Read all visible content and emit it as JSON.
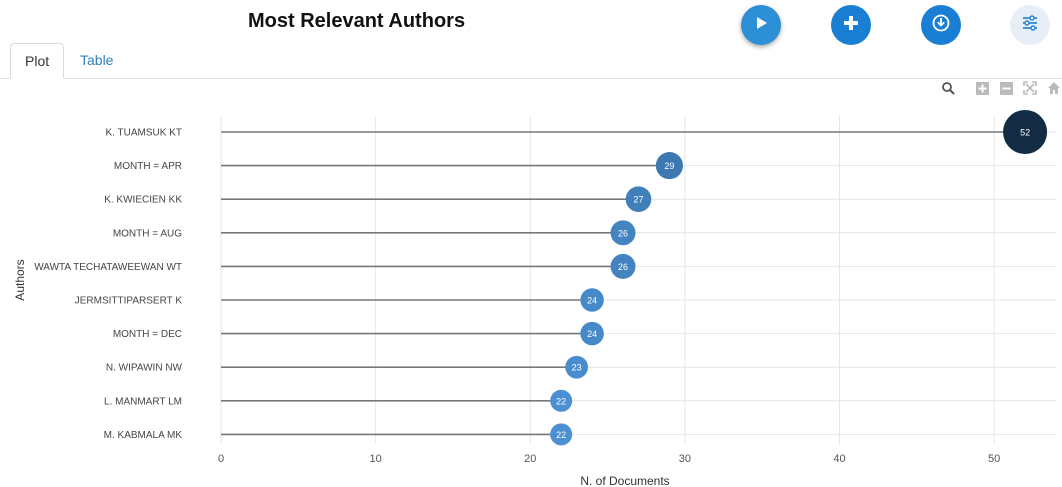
{
  "page": {
    "title": "Most Relevant Authors",
    "tabs": [
      {
        "label": "Plot",
        "active": true
      },
      {
        "label": "Table",
        "active": false
      }
    ],
    "buttons": [
      {
        "icon": "play-icon",
        "color": "#2d8fd6"
      },
      {
        "icon": "plus-icon",
        "color": "#1a7fd4"
      },
      {
        "icon": "download-icon",
        "color": "#1a7fd4"
      },
      {
        "icon": "sliders-icon",
        "color": "#e8eef7"
      }
    ],
    "modebar": [
      "zoom-icon",
      "zoom-in-icon",
      "zoom-out-icon",
      "autoscale-icon",
      "home-icon"
    ]
  },
  "chart_data": {
    "type": "scatter",
    "style": "lollipop",
    "xlabel": "N. of Documents",
    "ylabel": "Authors",
    "xlim": [
      0,
      54
    ],
    "xticks": [
      0,
      10,
      20,
      30,
      40,
      50
    ],
    "grid": true,
    "categories": [
      "K. TUAMSUK KT",
      "MONTH = APR",
      "K. KWIECIEN KK",
      "MONTH = AUG",
      "WAWTA TECHATAWEEWAN WT",
      "JERMSITTIPARSERT K",
      "MONTH = DEC",
      "N. WIPAWIN NW",
      "L. MANMART LM",
      "M. KABMALA MK"
    ],
    "values": [
      52,
      29,
      27,
      26,
      26,
      24,
      24,
      23,
      22,
      22
    ],
    "colors": {
      "max": "#132b43",
      "low": "#4a90d2",
      "stem": "#777777",
      "grid": "#e6e6e6"
    }
  }
}
